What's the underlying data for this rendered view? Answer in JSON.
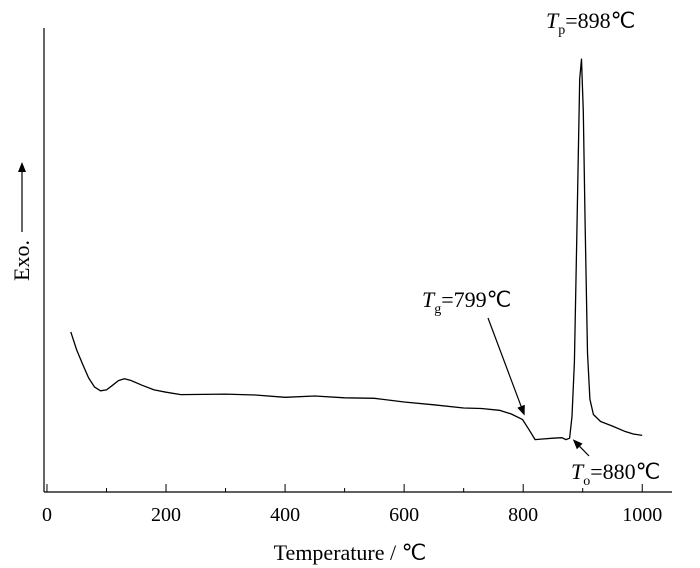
{
  "chart_data": {
    "type": "line",
    "title": "",
    "xlabel": "Temperature / ℃",
    "ylabel": "Exo.",
    "ylabel_arrow": "up",
    "xlim": [
      -5,
      1050
    ],
    "ylim": [
      0,
      100
    ],
    "xticks": [
      0,
      200,
      400,
      600,
      800,
      1000
    ],
    "xtick_labels": [
      "0",
      "200",
      "400",
      "600",
      "800",
      "1000"
    ],
    "yticks_shown": false,
    "grid": false,
    "legend": "none",
    "series": [
      {
        "points": [
          [
            40,
            34.5
          ],
          [
            50,
            30.6
          ],
          [
            60,
            27.5
          ],
          [
            70,
            24.6
          ],
          [
            80,
            22.6
          ],
          [
            90,
            21.8
          ],
          [
            100,
            22.0
          ],
          [
            110,
            23.0
          ],
          [
            120,
            24.0
          ],
          [
            130,
            24.4
          ],
          [
            140,
            24.1
          ],
          [
            160,
            23.0
          ],
          [
            180,
            22.0
          ],
          [
            200,
            21.5
          ],
          [
            225,
            21.0
          ],
          [
            300,
            21.1
          ],
          [
            350,
            20.9
          ],
          [
            400,
            20.4
          ],
          [
            450,
            20.7
          ],
          [
            500,
            20.3
          ],
          [
            550,
            20.2
          ],
          [
            600,
            19.4
          ],
          [
            650,
            18.8
          ],
          [
            700,
            18.1
          ],
          [
            730,
            18.0
          ],
          [
            760,
            17.6
          ],
          [
            780,
            16.8
          ],
          [
            799,
            15.6
          ],
          [
            810,
            13.4
          ],
          [
            820,
            11.3
          ],
          [
            830,
            11.4
          ],
          [
            850,
            11.6
          ],
          [
            865,
            11.7
          ],
          [
            872,
            11.3
          ],
          [
            878,
            11.6
          ],
          [
            882,
            16.3
          ],
          [
            886,
            28.0
          ],
          [
            890,
            55.0
          ],
          [
            893,
            75.0
          ],
          [
            895,
            89.0
          ],
          [
            898,
            93.3
          ],
          [
            901,
            82.0
          ],
          [
            904,
            58.0
          ],
          [
            908,
            30.0
          ],
          [
            912,
            20.0
          ],
          [
            918,
            16.7
          ],
          [
            930,
            15.2
          ],
          [
            950,
            14.2
          ],
          [
            970,
            13.1
          ],
          [
            985,
            12.5
          ],
          [
            1000,
            12.2
          ]
        ]
      }
    ],
    "annotations": [
      {
        "symbol": "T",
        "subscript": "g",
        "text": "=799℃",
        "x": 799,
        "y": 15.6
      },
      {
        "symbol": "T",
        "subscript": "o",
        "text": "=880℃",
        "x": 880,
        "y": 11.6
      },
      {
        "symbol": "T",
        "subscript": "p",
        "text": "=898℃",
        "x": 898,
        "y": 93.3
      }
    ]
  }
}
